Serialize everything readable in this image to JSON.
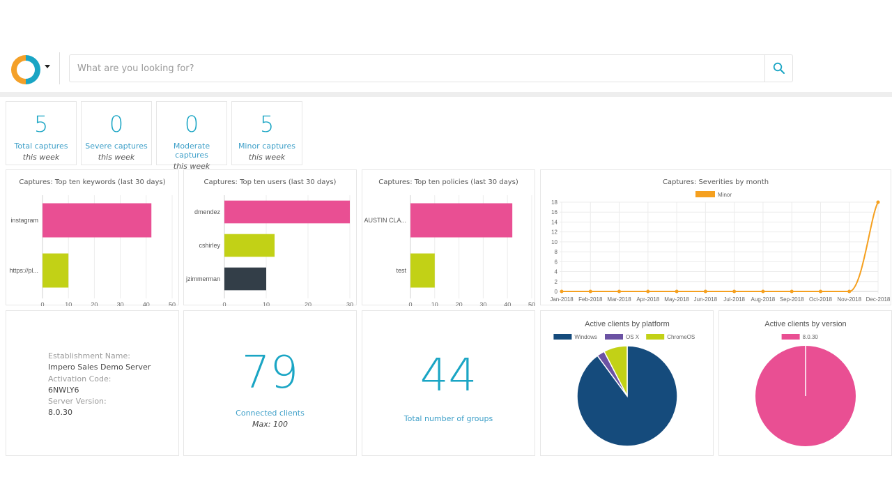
{
  "header": {
    "logo": "impero-logo",
    "logo_colors": {
      "left": "#f4a028",
      "right": "#1aa5c4"
    },
    "search_placeholder": "What are you looking for?",
    "search_value": "",
    "search_icon": "search-icon"
  },
  "stats": [
    {
      "value": "5",
      "label": "Total captures",
      "sub": "this week"
    },
    {
      "value": "0",
      "label": "Severe captures",
      "sub": "this week"
    },
    {
      "value": "0",
      "label": "Moderate captures",
      "sub": "this week"
    },
    {
      "value": "5",
      "label": "Minor captures",
      "sub": "this week"
    }
  ],
  "info": {
    "establishment_label": "Establishment Name:",
    "establishment_value": "Impero Sales Demo Server",
    "activation_label": "Activation Code:",
    "activation_value": "6NWLY6",
    "version_label": "Server Version:",
    "version_value": "8.0.30"
  },
  "connected": {
    "value": "79",
    "label": "Connected clients",
    "sub": "Max: 100"
  },
  "groups": {
    "value": "44",
    "label": "Total number of groups"
  },
  "colors": {
    "accent": "#1aa5c4",
    "pink": "#e94f93",
    "lime": "#c2d116",
    "dark": "#333e48",
    "orange": "#f5a01f",
    "navy": "#154b7c",
    "purple": "#6b52a3"
  },
  "chart_data": [
    {
      "id": "keywords",
      "type": "bar",
      "orientation": "horizontal",
      "title": "Captures: Top ten keywords (last 30 days)",
      "categories": [
        "instagram",
        "https://pl..."
      ],
      "values": [
        42,
        10
      ],
      "bar_colors": [
        "#e94f93",
        "#c2d116"
      ],
      "xlim": [
        0,
        50
      ],
      "xticks": [
        0,
        10,
        20,
        30,
        40,
        50
      ],
      "grid": true
    },
    {
      "id": "users",
      "type": "bar",
      "orientation": "horizontal",
      "title": "Captures: Top ten users (last 30 days)",
      "categories": [
        "dmendez",
        "cshirley",
        "jzimmerman"
      ],
      "values": [
        30,
        12,
        10
      ],
      "bar_colors": [
        "#e94f93",
        "#c2d116",
        "#333e48"
      ],
      "xlim": [
        0,
        30
      ],
      "xticks": [
        0,
        10,
        20,
        30
      ],
      "grid": true
    },
    {
      "id": "policies",
      "type": "bar",
      "orientation": "horizontal",
      "title": "Captures: Top ten policies (last 30 days)",
      "categories": [
        "AUSTIN CLA...",
        "test"
      ],
      "values": [
        42,
        10
      ],
      "bar_colors": [
        "#e94f93",
        "#c2d116"
      ],
      "xlim": [
        0,
        50
      ],
      "xticks": [
        0,
        10,
        20,
        30,
        40,
        50
      ],
      "grid": true
    },
    {
      "id": "severities",
      "type": "line",
      "title": "Captures: Severities by month",
      "x": [
        "Jan-2018",
        "Feb-2018",
        "Mar-2018",
        "Apr-2018",
        "May-2018",
        "Jun-2018",
        "Jul-2018",
        "Aug-2018",
        "Sep-2018",
        "Oct-2018",
        "Nov-2018",
        "Dec-2018"
      ],
      "series": [
        {
          "name": "Minor",
          "color": "#f5a01f",
          "values": [
            0,
            0,
            0,
            0,
            0,
            0,
            0,
            0,
            0,
            0,
            0,
            18
          ]
        }
      ],
      "ylim": [
        0,
        18
      ],
      "yticks": [
        0,
        2,
        4,
        6,
        8,
        10,
        12,
        14,
        16,
        18
      ],
      "legend": "top",
      "grid": true
    },
    {
      "id": "platform",
      "type": "pie",
      "title": "Active clients by platform",
      "labels": [
        "Windows",
        "OS X",
        "ChromeOS"
      ],
      "values": [
        71,
        2,
        6
      ],
      "colors": [
        "#154b7c",
        "#6b52a3",
        "#c2d116"
      ],
      "legend": "top"
    },
    {
      "id": "version",
      "type": "pie",
      "title": "Active clients by version",
      "labels": [
        "8.0.30"
      ],
      "values": [
        79
      ],
      "colors": [
        "#e94f93"
      ],
      "legend": "top"
    }
  ]
}
